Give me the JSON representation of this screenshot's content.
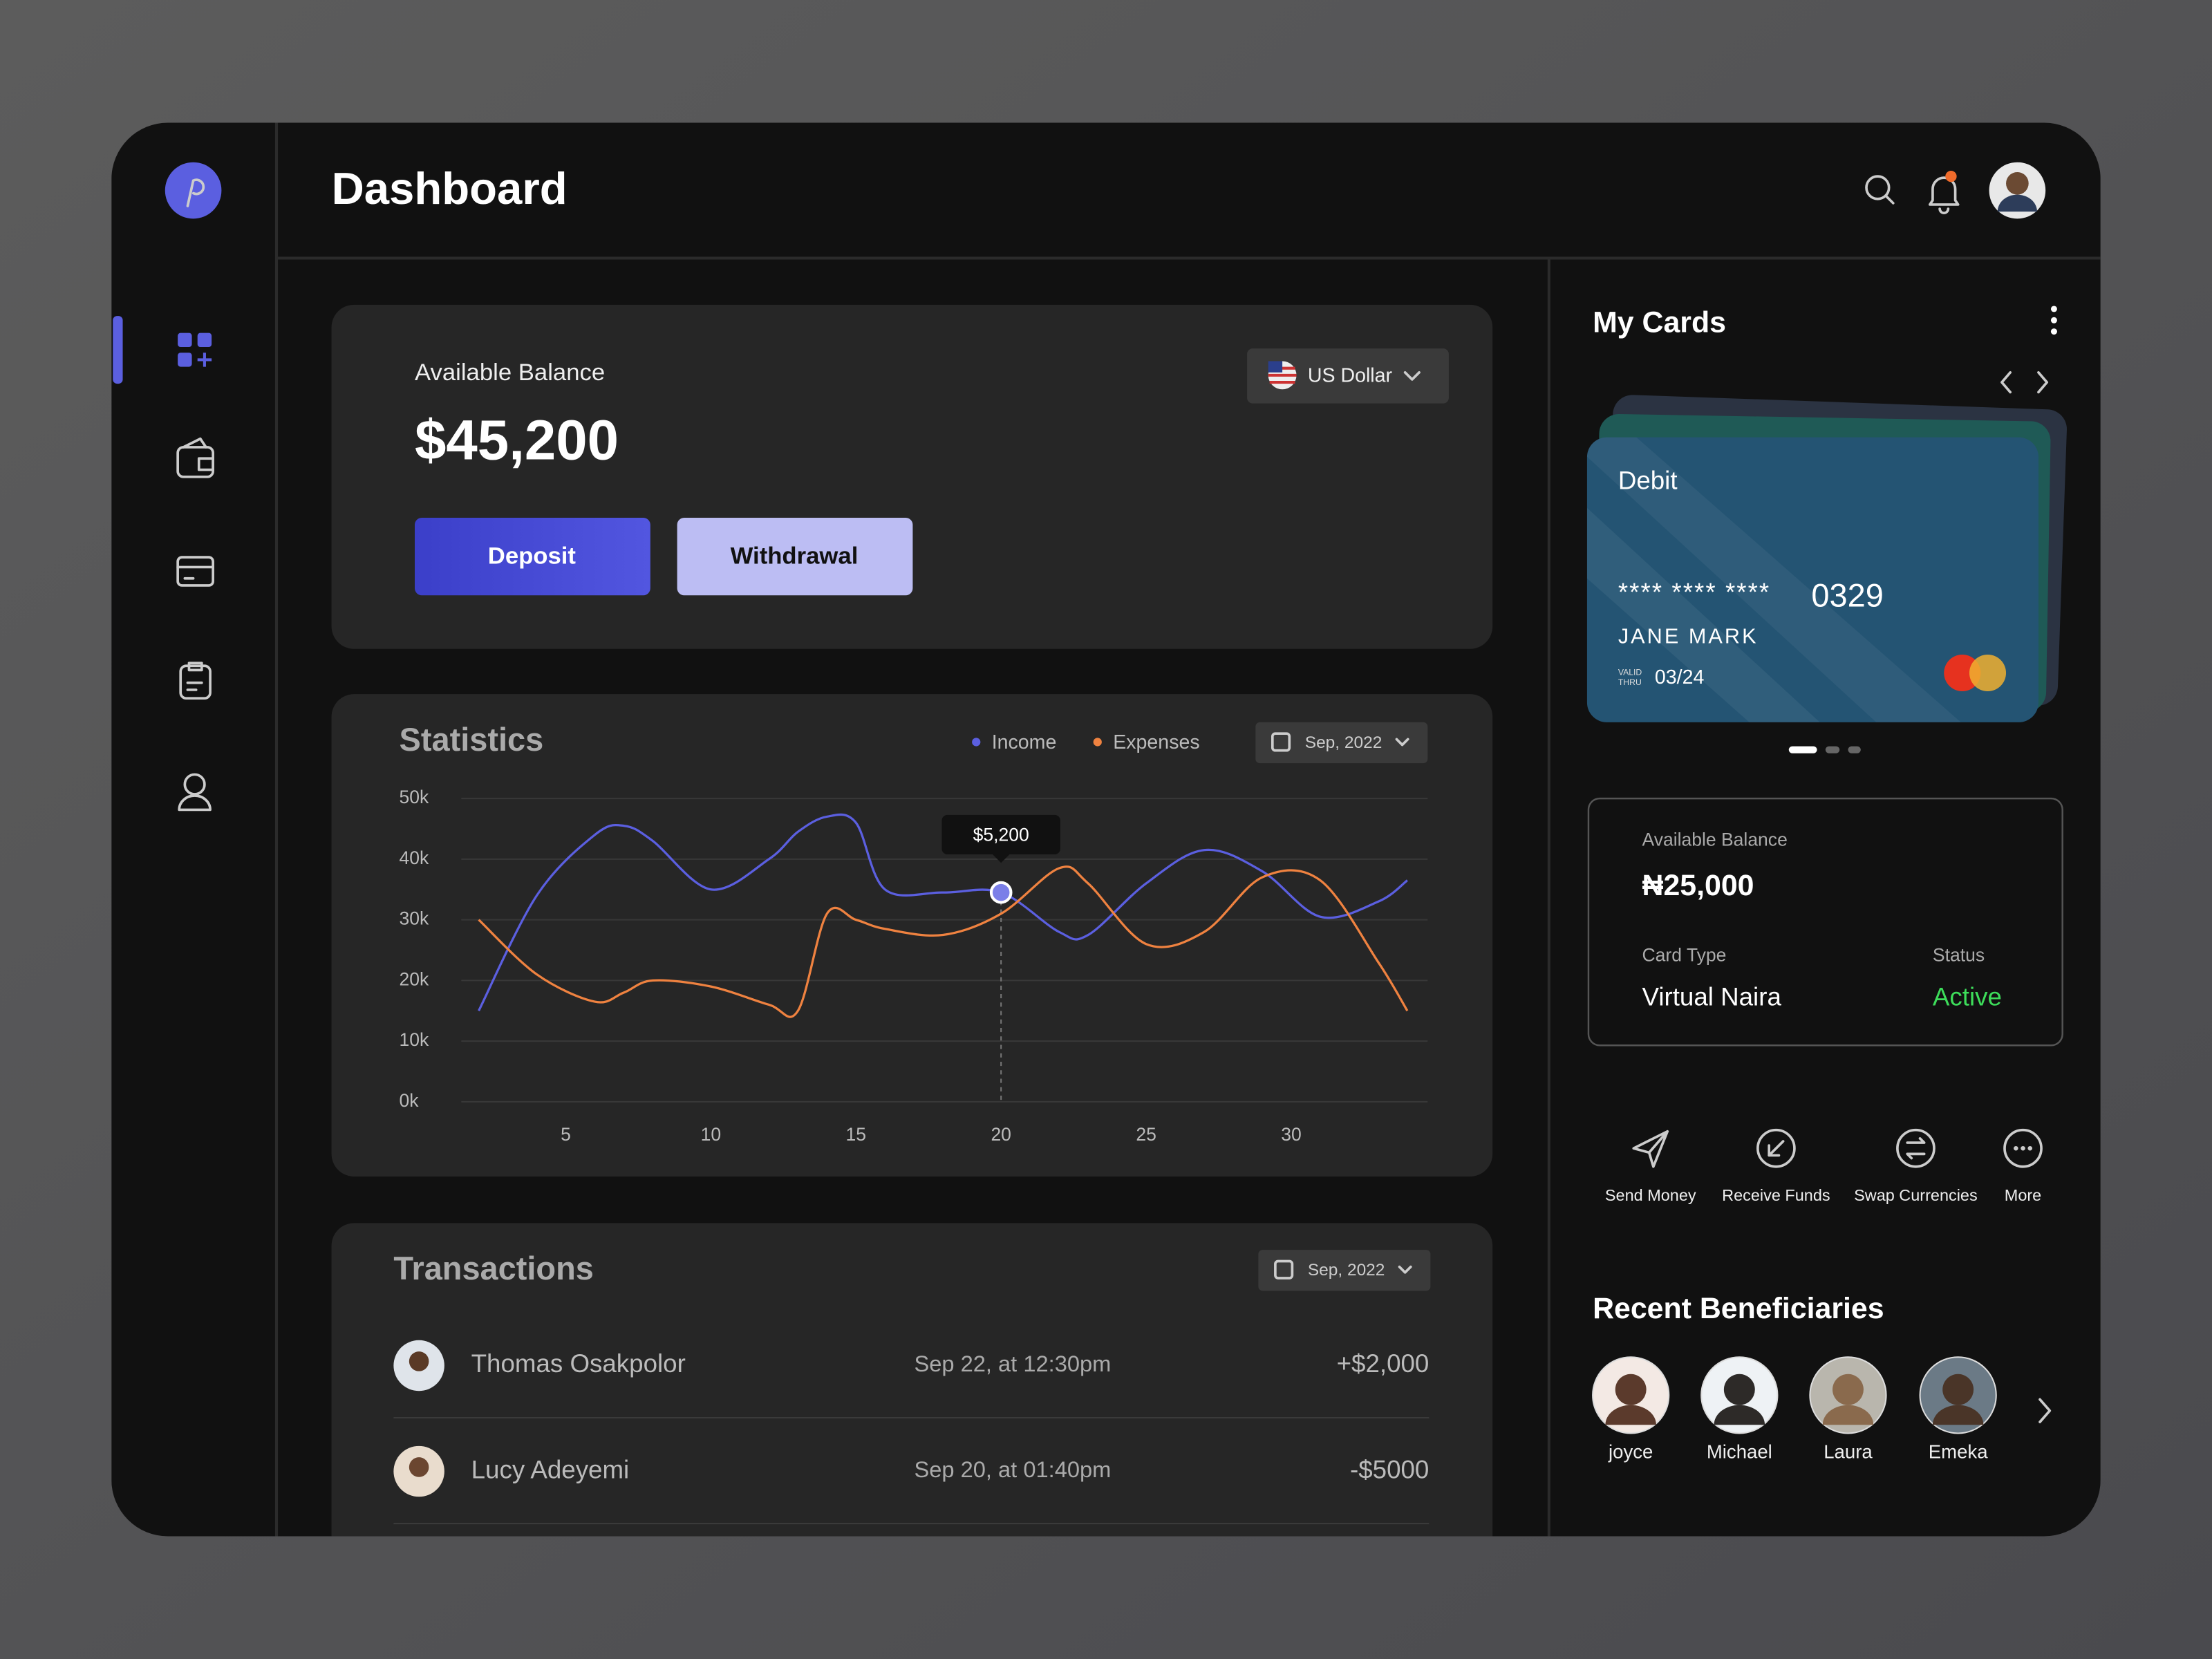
{
  "header": {
    "title": "Dashboard"
  },
  "balance": {
    "label": "Available Balance",
    "amount": "$45,200",
    "currency": "US Dollar",
    "buttons": [
      "Deposit",
      "Withdrawal"
    ]
  },
  "statistics": {
    "type": "line",
    "title": "Statistics",
    "period": "Sep, 2022",
    "x": [
      2,
      4,
      6,
      7,
      8,
      10,
      12,
      13,
      14,
      15,
      16,
      18,
      20,
      22,
      23,
      25,
      27,
      29,
      31,
      33,
      34
    ],
    "series": [
      {
        "name": "Income",
        "color": "#5b5fe0",
        "values": [
          15,
          34,
          44,
          45.5,
          43,
          35,
          40,
          44.5,
          47,
          46,
          35,
          34.5,
          34.5,
          28,
          27.5,
          36,
          41.5,
          38,
          30.5,
          33,
          36.5
        ]
      },
      {
        "name": "Expenses",
        "color": "#ef8240",
        "values": [
          30,
          21,
          16.5,
          18,
          20,
          19,
          16,
          15,
          31,
          30,
          28.5,
          27.5,
          31,
          38.5,
          36,
          26,
          28,
          37,
          36.5,
          23,
          15
        ]
      }
    ],
    "xlim": [
      1.4,
      34.7
    ],
    "ylim": [
      0,
      50
    ],
    "xticks": [
      5,
      10,
      15,
      20,
      25,
      30
    ],
    "yticks": [
      {
        "value": 0,
        "label": "0k"
      },
      {
        "value": 10,
        "label": "10k"
      },
      {
        "value": 20,
        "label": "20k"
      },
      {
        "value": 30,
        "label": "30k"
      },
      {
        "value": 40,
        "label": "40k"
      },
      {
        "value": 50,
        "label": "50k"
      }
    ],
    "grid": true,
    "tooltip": {
      "x": 20,
      "label": "$5,200"
    }
  },
  "transactions": {
    "title": "Transactions",
    "period": "Sep, 2022",
    "rows": [
      [
        "Thomas Osakpolor",
        "Sep 22, at 12:30pm",
        "+$2,000"
      ],
      [
        "Lucy Adeyemi",
        "Sep 20, at 01:40pm",
        "-$5000"
      ]
    ]
  },
  "my_cards": {
    "title": "My Cards",
    "card": {
      "type": "Debit",
      "number_mask": "**** **** ****",
      "number_last": "0329",
      "holder": "JANE MARK",
      "valid_label": [
        "VALID",
        "THRU"
      ],
      "expiry": "03/24"
    },
    "account": {
      "balance_label": "Available Balance",
      "balance": "₦25,000",
      "type_label": "Card Type",
      "type": "Virtual Naira",
      "status_label": "Status",
      "status": "Active"
    }
  },
  "actions": [
    "Send Money",
    "Receive Funds",
    "Swap Currencies",
    "More"
  ],
  "beneficiaries": {
    "title": "Recent Beneficiaries",
    "names": [
      "joyce",
      "Michael",
      "Laura",
      "Emeka"
    ]
  }
}
